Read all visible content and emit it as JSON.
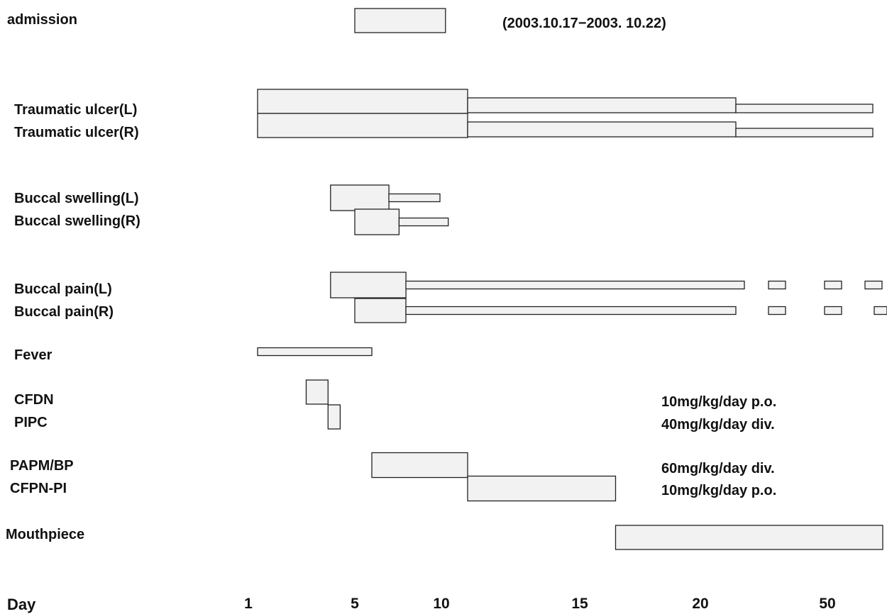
{
  "chart_data": {
    "type": "gantt",
    "x_axis_label": "Day",
    "x_tick_labels": [
      "1",
      "5",
      "10",
      "15",
      "20",
      "50"
    ],
    "admission_period": "(2003.10.17−2003. 10.22)",
    "rows": [
      {
        "label": "admission",
        "segments": [
          {
            "start": 5,
            "end": 10.2,
            "level": "major"
          }
        ]
      },
      {
        "label": "Traumatic ulcer(L)",
        "segments": [
          {
            "start": 1,
            "end": 11,
            "level": "major"
          },
          {
            "start": 11,
            "end": 20.5,
            "level": "minor"
          },
          {
            "start": 20.5,
            "end": 50.7,
            "level": "trace"
          }
        ]
      },
      {
        "label": "Traumatic ulcer(R)",
        "segments": [
          {
            "start": 1,
            "end": 11,
            "level": "major"
          },
          {
            "start": 11,
            "end": 20.5,
            "level": "minor"
          },
          {
            "start": 20.5,
            "end": 50.7,
            "level": "trace"
          }
        ]
      },
      {
        "label": "Buccal swelling(L)",
        "segments": [
          {
            "start": 4,
            "end": 7,
            "level": "major"
          },
          {
            "start": 7,
            "end": 10,
            "level": "trace"
          }
        ]
      },
      {
        "label": "Buccal swelling(R)",
        "segments": [
          {
            "start": 5,
            "end": 7.6,
            "level": "major"
          },
          {
            "start": 7.6,
            "end": 10.3,
            "level": "trace"
          }
        ]
      },
      {
        "label": "Buccal pain(L)",
        "segments": [
          {
            "start": 4,
            "end": 8,
            "level": "major"
          },
          {
            "start": 8,
            "end": 21,
            "level": "trace"
          },
          {
            "start": 22.3,
            "end": 23,
            "level": "trace"
          },
          {
            "start": 24.5,
            "end": 25.3,
            "level": "trace"
          },
          {
            "start": 26,
            "end": 26.8,
            "level": "trace"
          }
        ]
      },
      {
        "label": "Buccal pain(R)",
        "segments": [
          {
            "start": 5,
            "end": 8,
            "level": "major"
          },
          {
            "start": 8,
            "end": 20.5,
            "level": "trace"
          },
          {
            "start": 22.3,
            "end": 23,
            "level": "trace"
          },
          {
            "start": 24.5,
            "end": 25.3,
            "level": "trace"
          },
          {
            "start": 26.2,
            "end": 27,
            "level": "trace"
          }
        ]
      },
      {
        "label": "Fever",
        "segments": [
          {
            "start": 1,
            "end": 6,
            "level": "trace"
          }
        ]
      },
      {
        "label": "CFDN",
        "segments": [
          {
            "start": 3,
            "end": 3.9,
            "level": "major"
          }
        ]
      },
      {
        "label": "PIPC",
        "segments": [
          {
            "start": 3.9,
            "end": 4.4,
            "level": "major"
          }
        ]
      },
      {
        "label": "PAPM/BP",
        "segments": [
          {
            "start": 6,
            "end": 11,
            "level": "major"
          }
        ]
      },
      {
        "label": "CFPN-PI",
        "segments": [
          {
            "start": 11,
            "end": 16.5,
            "level": "major"
          }
        ]
      },
      {
        "label": "Mouthpiece",
        "segments": [
          {
            "start": 16.5,
            "end": 51,
            "level": "major"
          }
        ]
      }
    ],
    "dose_annotations": [
      "10mg/kg/day p.o.",
      "40mg/kg/day div.",
      "60mg/kg/day div.",
      "10mg/kg/day p.o."
    ],
    "colors": {
      "bar_fill": "#f2f2f2",
      "bar_stroke": "#222222",
      "text": "#111111"
    }
  }
}
